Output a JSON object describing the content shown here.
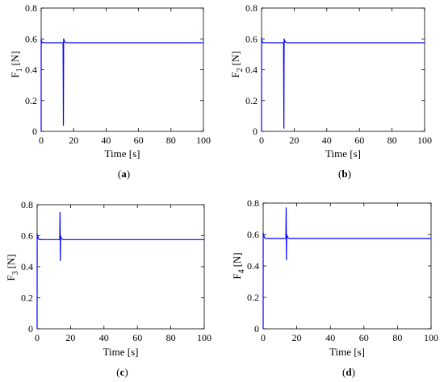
{
  "line_color": "#0000ff",
  "chart_data": [
    {
      "type": "line",
      "panel_label": "(a)",
      "panel_letter": "a",
      "xlabel": "Time [s]",
      "ylabel": "F",
      "ylabel_sub": "1",
      "ylabel_unit": "[N]",
      "xlim": [
        0,
        100
      ],
      "ylim": [
        0,
        0.8
      ],
      "xticks": [
        "0",
        "20",
        "40",
        "60",
        "80",
        "100"
      ],
      "yticks": [
        "0",
        "0.2",
        "0.4",
        "0.6",
        "0.8"
      ],
      "grid": false,
      "series": [
        {
          "x": [
            0,
            0.02,
            0.25,
            0.6,
            1.0,
            1.5,
            2.0,
            3.0,
            13.0,
            13.5,
            13.7,
            13.85,
            14.0,
            14.3,
            14.7,
            15.3,
            16.0,
            100
          ],
          "y": [
            0,
            0.6,
            0.585,
            0.578,
            0.575,
            0.577,
            0.576,
            0.575,
            0.575,
            0.575,
            0.04,
            0.6,
            0.595,
            0.585,
            0.578,
            0.576,
            0.575,
            0.575
          ]
        }
      ]
    },
    {
      "type": "line",
      "panel_label": "(b)",
      "panel_letter": "b",
      "xlabel": "Time [s]",
      "ylabel": "F",
      "ylabel_sub": "2",
      "ylabel_unit": "[N]",
      "xlim": [
        0,
        100
      ],
      "ylim": [
        0,
        0.8
      ],
      "xticks": [
        "0",
        "20",
        "40",
        "60",
        "80",
        "100"
      ],
      "yticks": [
        "0",
        "0.2",
        "0.4",
        "0.6",
        "0.8"
      ],
      "grid": false,
      "series": [
        {
          "x": [
            0,
            0.02,
            0.25,
            0.6,
            1.0,
            1.5,
            2.0,
            3.0,
            13.0,
            13.5,
            13.7,
            13.85,
            14.0,
            14.3,
            14.7,
            15.3,
            16.0,
            100
          ],
          "y": [
            0,
            0.61,
            0.59,
            0.58,
            0.575,
            0.577,
            0.576,
            0.575,
            0.575,
            0.575,
            0.02,
            0.6,
            0.595,
            0.585,
            0.578,
            0.576,
            0.575,
            0.575
          ]
        }
      ]
    },
    {
      "type": "line",
      "panel_label": "(c)",
      "panel_letter": "c",
      "xlabel": "Time [s]",
      "ylabel": "F",
      "ylabel_sub": "3",
      "ylabel_unit": "[N]",
      "xlim": [
        0,
        100
      ],
      "ylim": [
        0,
        0.8
      ],
      "xticks": [
        "0",
        "20",
        "40",
        "60",
        "80",
        "100"
      ],
      "yticks": [
        "0",
        "0.2",
        "0.4",
        "0.6",
        "0.8"
      ],
      "grid": false,
      "series": [
        {
          "x": [
            0,
            0.02,
            0.25,
            0.6,
            1.0,
            1.5,
            2.0,
            3.0,
            13.0,
            13.5,
            13.7,
            13.85,
            14.0,
            14.3,
            14.7,
            15.3,
            16.0,
            100
          ],
          "y": [
            0,
            0.61,
            0.6,
            0.585,
            0.578,
            0.575,
            0.576,
            0.575,
            0.575,
            0.575,
            0.75,
            0.44,
            0.6,
            0.59,
            0.58,
            0.576,
            0.575,
            0.575
          ]
        }
      ]
    },
    {
      "type": "line",
      "panel_label": "(d)",
      "panel_letter": "d",
      "xlabel": "Time [s]",
      "ylabel": "F",
      "ylabel_sub": "4",
      "ylabel_unit": "[N]",
      "xlim": [
        0,
        100
      ],
      "ylim": [
        0,
        0.8
      ],
      "xticks": [
        "0",
        "20",
        "40",
        "60",
        "80",
        "100"
      ],
      "yticks": [
        "0",
        "0.2",
        "0.4",
        "0.6",
        "0.8"
      ],
      "grid": false,
      "series": [
        {
          "x": [
            0,
            0.02,
            0.25,
            0.6,
            1.0,
            1.5,
            2.0,
            3.0,
            13.0,
            13.5,
            13.7,
            13.85,
            14.0,
            14.3,
            14.7,
            15.3,
            16.0,
            100
          ],
          "y": [
            0,
            0.61,
            0.6,
            0.585,
            0.578,
            0.575,
            0.576,
            0.575,
            0.575,
            0.575,
            0.77,
            0.44,
            0.6,
            0.59,
            0.58,
            0.576,
            0.575,
            0.575
          ]
        }
      ]
    }
  ]
}
